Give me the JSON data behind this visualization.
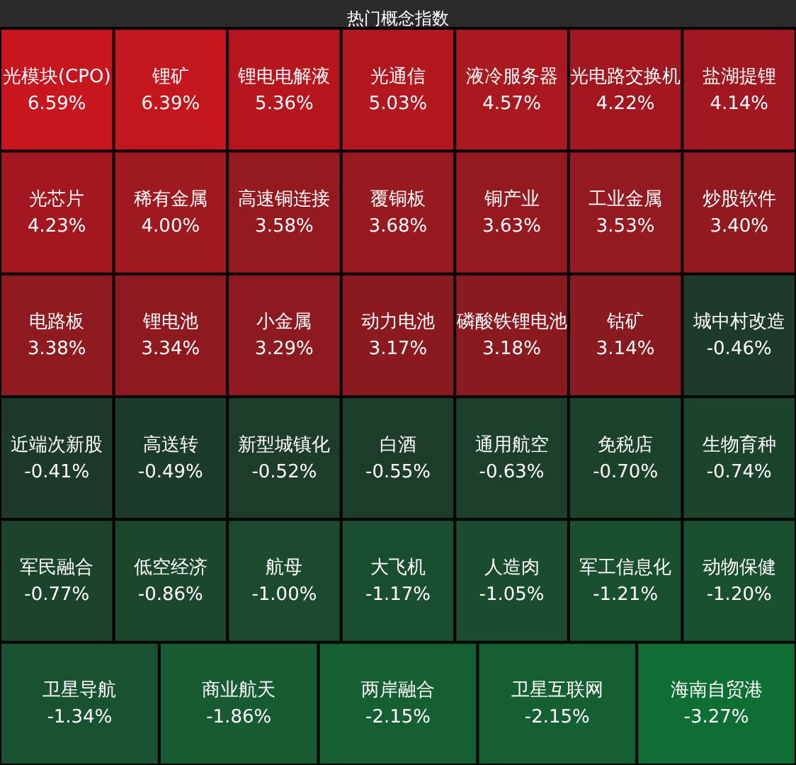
{
  "chart_data": {
    "type": "other",
    "title": "热门概念指数",
    "categories": [
      "光模块(CPO)",
      "锂矿",
      "锂电电解液",
      "光通信",
      "液冷服务器",
      "光电路交换机",
      "盐湖提锂",
      "光芯片",
      "稀有金属",
      "高速铜连接",
      "覆铜板",
      "铜产业",
      "工业金属",
      "炒股软件",
      "电路板",
      "锂电池",
      "小金属",
      "动力电池",
      "磷酸铁锂电池",
      "钴矿",
      "城中村改造",
      "近端次新股",
      "高送转",
      "新型城镇化",
      "白酒",
      "通用航空",
      "免税店",
      "生物育种",
      "军民融合",
      "低空经济",
      "航母",
      "大飞机",
      "人造肉",
      "军工信息化",
      "动物保健",
      "卫星导航",
      "商业航天",
      "两岸融合",
      "卫星互联网",
      "海南自贸港"
    ],
    "values": [
      6.59,
      6.39,
      5.36,
      5.03,
      4.57,
      4.22,
      4.14,
      4.23,
      4.0,
      3.58,
      3.68,
      3.63,
      3.53,
      3.4,
      3.38,
      3.34,
      3.29,
      3.17,
      3.18,
      3.14,
      -0.46,
      -0.41,
      -0.49,
      -0.52,
      -0.55,
      -0.63,
      -0.7,
      -0.74,
      -0.77,
      -0.86,
      -1.0,
      -1.17,
      -1.05,
      -1.21,
      -1.2,
      -1.34,
      -1.86,
      -2.15,
      -2.15,
      -3.27
    ],
    "value_labels": [
      "6.59%",
      "6.39%",
      "5.36%",
      "5.03%",
      "4.57%",
      "4.22%",
      "4.14%",
      "4.23%",
      "4.00%",
      "3.58%",
      "3.68%",
      "3.63%",
      "3.53%",
      "3.40%",
      "3.38%",
      "3.34%",
      "3.29%",
      "3.17%",
      "3.18%",
      "3.14%",
      "-0.46%",
      "-0.41%",
      "-0.49%",
      "-0.52%",
      "-0.55%",
      "-0.63%",
      "-0.70%",
      "-0.74%",
      "-0.77%",
      "-0.86%",
      "-1.00%",
      "-1.17%",
      "-1.05%",
      "-1.21%",
      "-1.20%",
      "-1.34%",
      "-1.86%",
      "-2.15%",
      "-2.15%",
      "-3.27%"
    ],
    "colors": [
      "#c8161e",
      "#c4161d",
      "#b8161f",
      "#b3171f",
      "#aa1820",
      "#a31820",
      "#a21820",
      "#a31820",
      "#9e1920",
      "#941a20",
      "#961a20",
      "#951a20",
      "#931a20",
      "#901a20",
      "#8f1a20",
      "#8e1a20",
      "#8d1a20",
      "#8a1a20",
      "#8a1a20",
      "#891a20",
      "#1d3a2a",
      "#1d3929",
      "#1d3b2a",
      "#1d3c2a",
      "#1d3d2a",
      "#1c402b",
      "#1c422c",
      "#1c432c",
      "#1c442c",
      "#1c472d",
      "#1b4a2f",
      "#1a4e30",
      "#1b4c2f",
      "#1a4f30",
      "#1a4f30",
      "#195231",
      "#185a32",
      "#165f33",
      "#165f33",
      "#0f6e33"
    ]
  }
}
